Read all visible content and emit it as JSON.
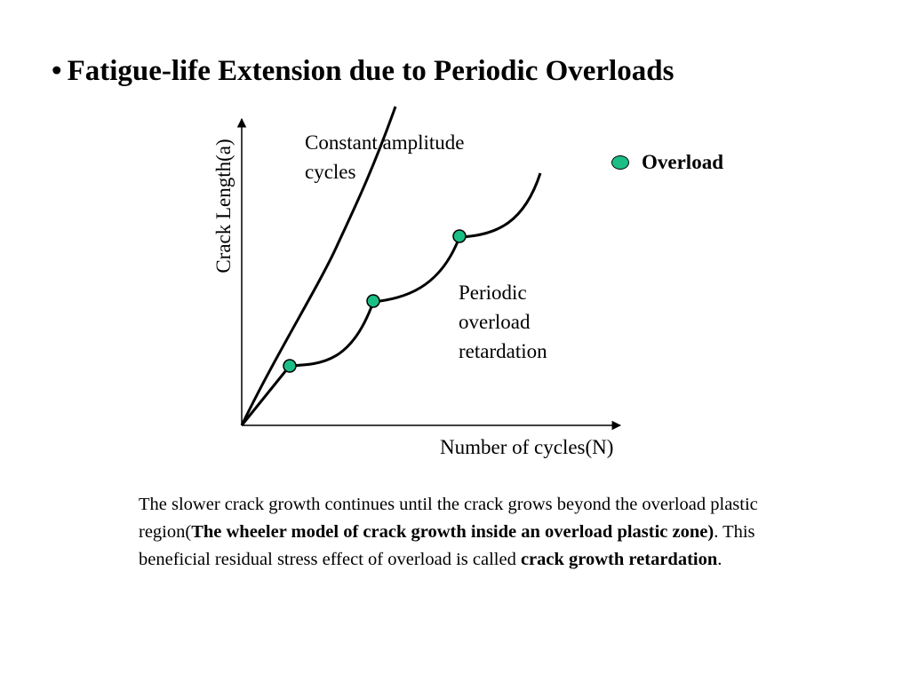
{
  "title": {
    "bullet": "•",
    "text": "Fatigue-life Extension due to Periodic Overloads"
  },
  "diagram": {
    "y_axis_label": "Crack Length(a)",
    "x_axis_label": "Number of cycles(N)",
    "constant_curve_label": [
      "Constant amplitude",
      "cycles"
    ],
    "periodic_curve_label": [
      "Periodic",
      "overload",
      "retardation"
    ],
    "legend": {
      "label": "Overload",
      "marker_color": "#1bbf86"
    },
    "overload_point_count": 3
  },
  "body": {
    "part1": "The slower crack growth continues until the crack grows beyond the overload plastic region(",
    "bold1": "The wheeler model of crack growth inside an overload plastic zone)",
    "part2": ".  This beneficial residual stress effect of overload is called ",
    "bold2": "crack growth retardation",
    "part3": "."
  }
}
